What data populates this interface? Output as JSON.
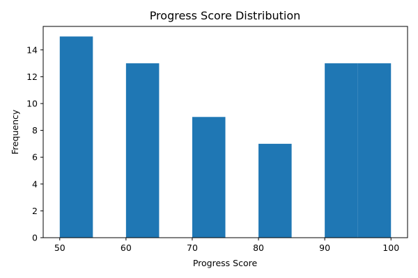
{
  "chart_data": {
    "type": "bar",
    "title": "Progress Score Distribution",
    "xlabel": "Progress Score",
    "ylabel": "Frequency",
    "bins": [
      {
        "start": 50,
        "end": 55,
        "value": 15
      },
      {
        "start": 55,
        "end": 60,
        "value": 0
      },
      {
        "start": 60,
        "end": 65,
        "value": 13
      },
      {
        "start": 65,
        "end": 70,
        "value": 0
      },
      {
        "start": 70,
        "end": 75,
        "value": 9
      },
      {
        "start": 75,
        "end": 80,
        "value": 0
      },
      {
        "start": 80,
        "end": 85,
        "value": 7
      },
      {
        "start": 85,
        "end": 90,
        "value": 0
      },
      {
        "start": 90,
        "end": 95,
        "value": 13
      },
      {
        "start": 95,
        "end": 100,
        "value": 13
      }
    ],
    "xlim": [
      47.5,
      102.5
    ],
    "ylim": [
      0,
      15.75
    ],
    "x_ticks": [
      50,
      60,
      70,
      80,
      90,
      100
    ],
    "y_ticks": [
      0,
      2,
      4,
      6,
      8,
      10,
      12,
      14
    ],
    "bar_color": "#1f77b4",
    "grid": false
  }
}
